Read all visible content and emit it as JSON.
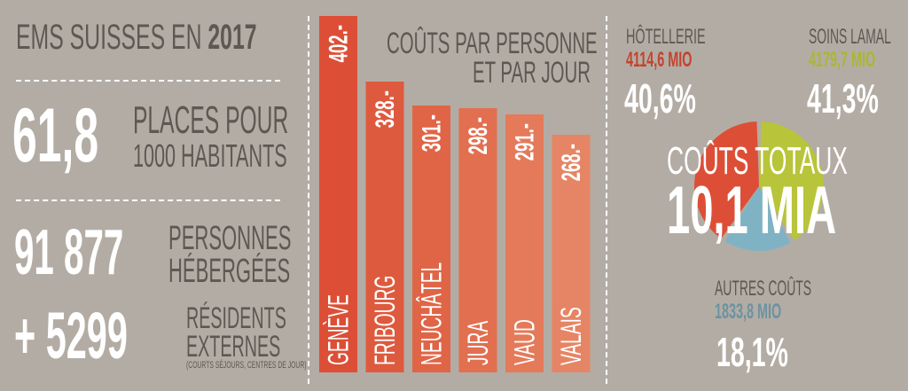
{
  "header": {
    "title_prefix": "EMS SUISSES EN",
    "title_year": "2017"
  },
  "stats": {
    "places_number": "61,8",
    "places_line1": "PLACES POUR",
    "places_line2": "1000 HABITANTS",
    "persons_number": "91 877",
    "persons_line1": "PERSONNES",
    "persons_line2": "HÉBERGÉES",
    "external_number": "+ 5299",
    "external_line1": "RÉSIDENTS",
    "external_line2": "EXTERNES",
    "external_note": "(COURTS SÉJOURS, CENTRES DE JOUR)"
  },
  "colors": {
    "background": "#b3aca4",
    "text_dark": "#5d5852",
    "bar_colors": [
      "#dc4f36",
      "#de5a3e",
      "#e06547",
      "#e26f50",
      "#e47a5a",
      "#e68565"
    ],
    "hotellerie": "#dc4f36",
    "soins": "#b8c43a",
    "autres": "#7fb3c4",
    "hotellerie_text": "#c4432d",
    "soins_text": "#a8b830",
    "autres_text": "#6a93a2"
  },
  "chart_data": [
    {
      "type": "bar",
      "title": "COÛTS PAR PERSONNE ET PAR JOUR",
      "title_line1": "COÛTS PAR PERSONNE",
      "title_line2": "ET PAR JOUR",
      "categories": [
        "GENÈVE",
        "FRIBOURG",
        "NEUCHÂTEL",
        "JURA",
        "VAUD",
        "VALAIS"
      ],
      "values": [
        402,
        328,
        301,
        298,
        291,
        268
      ],
      "value_labels": [
        "402.-",
        "328.-",
        "301.-",
        "298.-",
        "291.-",
        "268.-"
      ],
      "ylim": [
        0,
        402
      ]
    },
    {
      "type": "pie",
      "title_line1": "COÛTS TOTAUX",
      "title_line2": "10,1 MIA",
      "slices": [
        {
          "name": "HÔTELLERIE",
          "amount": "4114,6 MIO",
          "percent_label": "40,6%",
          "value": 40.6
        },
        {
          "name": "SOINS LAMAL",
          "amount": "4179,7 MIO",
          "percent_label": "41,3%",
          "value": 41.3
        },
        {
          "name": "AUTRES COÛTS",
          "amount": "1833,8 MIO",
          "percent_label": "18,1%",
          "value": 18.1
        }
      ]
    }
  ]
}
